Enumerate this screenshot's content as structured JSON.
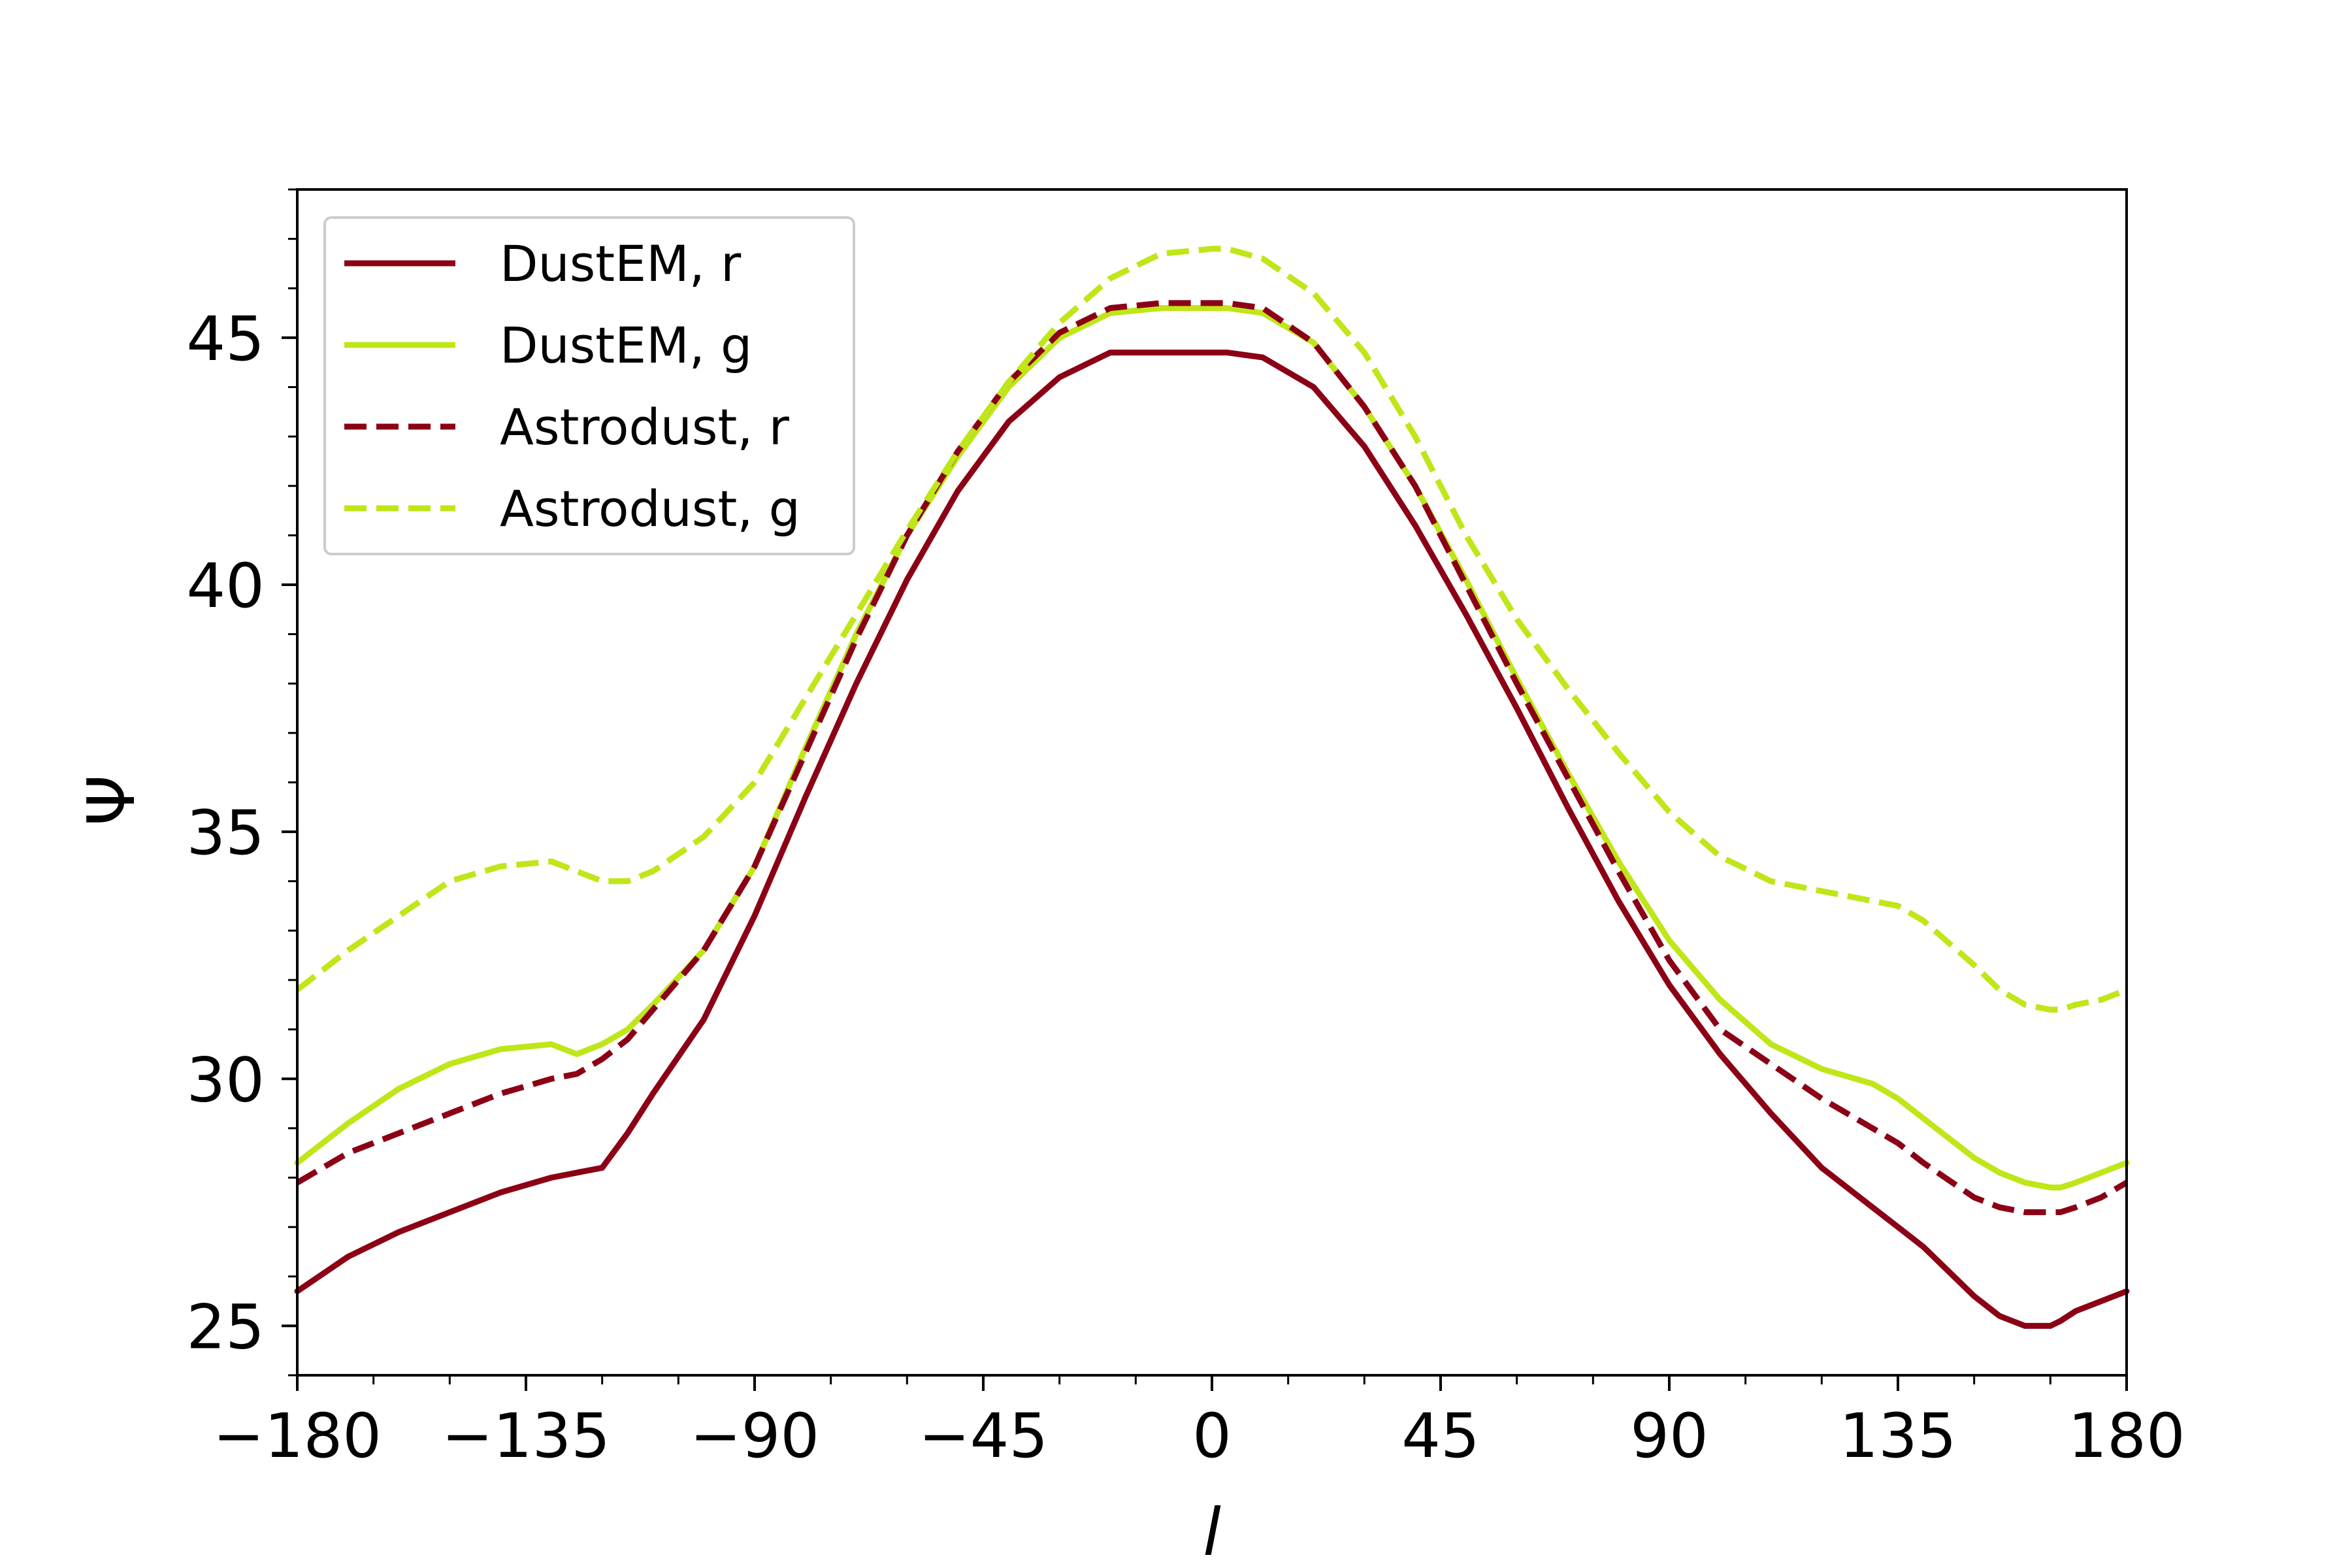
{
  "chart_data": {
    "type": "line",
    "title": "",
    "xlabel": "l",
    "ylabel": "Ψ",
    "xlim": [
      -180,
      180
    ],
    "ylim": [
      24,
      48
    ],
    "xticks": [
      -180,
      -135,
      -90,
      -45,
      0,
      45,
      90,
      135,
      180
    ],
    "xtick_labels": [
      "−180",
      "−135",
      "−90",
      "−45",
      "0",
      "45",
      "90",
      "135",
      "180"
    ],
    "yticks": [
      25,
      30,
      35,
      40,
      45
    ],
    "ytick_labels": [
      "25",
      "30",
      "35",
      "40",
      "45"
    ],
    "grid": false,
    "legend_position": "upper-left",
    "series": [
      {
        "name": "DustEM, r",
        "color": "#8b0015",
        "style": "solid",
        "x": [
          -180,
          -170,
          -160,
          -150,
          -140,
          -130,
          -125,
          -120,
          -115,
          -110,
          -100,
          -90,
          -80,
          -70,
          -60,
          -50,
          -40,
          -30,
          -20,
          -10,
          0,
          3,
          10,
          20,
          30,
          40,
          50,
          60,
          70,
          80,
          90,
          100,
          110,
          120,
          130,
          135,
          140,
          150,
          155,
          160,
          165,
          167,
          170,
          175,
          180
        ],
        "y": [
          25.7,
          26.4,
          26.9,
          27.3,
          27.7,
          28.0,
          28.1,
          28.2,
          28.9,
          29.7,
          31.2,
          33.3,
          35.7,
          38.0,
          40.1,
          41.9,
          43.3,
          44.2,
          44.7,
          44.7,
          44.7,
          44.7,
          44.6,
          44.0,
          42.8,
          41.2,
          39.4,
          37.5,
          35.5,
          33.6,
          31.9,
          30.5,
          29.3,
          28.2,
          27.4,
          27.0,
          26.6,
          25.6,
          25.2,
          25.0,
          25.0,
          25.1,
          25.3,
          25.5,
          25.7
        ]
      },
      {
        "name": "DustEM, g",
        "color": "#bfe619",
        "style": "solid",
        "x": [
          -180,
          -170,
          -160,
          -150,
          -140,
          -130,
          -125,
          -120,
          -115,
          -110,
          -100,
          -90,
          -80,
          -70,
          -60,
          -50,
          -40,
          -30,
          -20,
          -10,
          0,
          3,
          10,
          20,
          30,
          40,
          50,
          60,
          70,
          80,
          90,
          100,
          110,
          120,
          130,
          135,
          140,
          150,
          155,
          160,
          165,
          167,
          170,
          175,
          180
        ],
        "y": [
          28.3,
          29.1,
          29.8,
          30.3,
          30.6,
          30.7,
          30.5,
          30.7,
          31.0,
          31.5,
          32.6,
          34.3,
          36.7,
          39.0,
          41.0,
          42.6,
          44.0,
          45.0,
          45.5,
          45.6,
          45.6,
          45.6,
          45.5,
          44.9,
          43.6,
          42.0,
          40.1,
          38.1,
          36.2,
          34.4,
          32.8,
          31.6,
          30.7,
          30.2,
          29.9,
          29.6,
          29.2,
          28.4,
          28.1,
          27.9,
          27.8,
          27.8,
          27.9,
          28.1,
          28.3
        ]
      },
      {
        "name": "Astrodust, r",
        "color": "#8b0015",
        "style": "dashed",
        "x": [
          -180,
          -170,
          -160,
          -150,
          -140,
          -130,
          -125,
          -120,
          -115,
          -110,
          -100,
          -90,
          -80,
          -70,
          -60,
          -50,
          -40,
          -30,
          -20,
          -10,
          0,
          3,
          10,
          20,
          30,
          40,
          50,
          60,
          70,
          80,
          90,
          100,
          110,
          120,
          130,
          135,
          140,
          150,
          155,
          160,
          165,
          167,
          170,
          175,
          180
        ],
        "y": [
          27.9,
          28.5,
          28.9,
          29.3,
          29.7,
          30.0,
          30.1,
          30.4,
          30.8,
          31.4,
          32.6,
          34.3,
          36.6,
          38.9,
          41.0,
          42.7,
          44.1,
          45.1,
          45.6,
          45.7,
          45.7,
          45.7,
          45.6,
          44.9,
          43.6,
          42.0,
          40.0,
          38.0,
          36.1,
          34.2,
          32.4,
          31.0,
          30.3,
          29.6,
          29.0,
          28.7,
          28.3,
          27.6,
          27.4,
          27.3,
          27.3,
          27.3,
          27.4,
          27.6,
          27.9
        ]
      },
      {
        "name": "Astrodust, g",
        "color": "#bfe619",
        "style": "dashed",
        "x": [
          -180,
          -170,
          -160,
          -150,
          -140,
          -130,
          -125,
          -120,
          -115,
          -110,
          -100,
          -90,
          -80,
          -70,
          -60,
          -50,
          -40,
          -30,
          -20,
          -10,
          0,
          3,
          10,
          20,
          30,
          40,
          50,
          60,
          70,
          80,
          90,
          100,
          110,
          120,
          130,
          135,
          140,
          150,
          155,
          160,
          165,
          167,
          170,
          175,
          180
        ],
        "y": [
          31.8,
          32.6,
          33.3,
          34.0,
          34.3,
          34.4,
          34.2,
          34.0,
          34.0,
          34.2,
          34.9,
          36.0,
          37.7,
          39.4,
          41.1,
          42.7,
          44.1,
          45.3,
          46.2,
          46.7,
          46.8,
          46.8,
          46.6,
          45.9,
          44.7,
          43.0,
          41.0,
          39.3,
          37.9,
          36.6,
          35.4,
          34.5,
          34.0,
          33.8,
          33.6,
          33.5,
          33.2,
          32.3,
          31.8,
          31.5,
          31.4,
          31.4,
          31.5,
          31.6,
          31.8
        ]
      }
    ]
  }
}
